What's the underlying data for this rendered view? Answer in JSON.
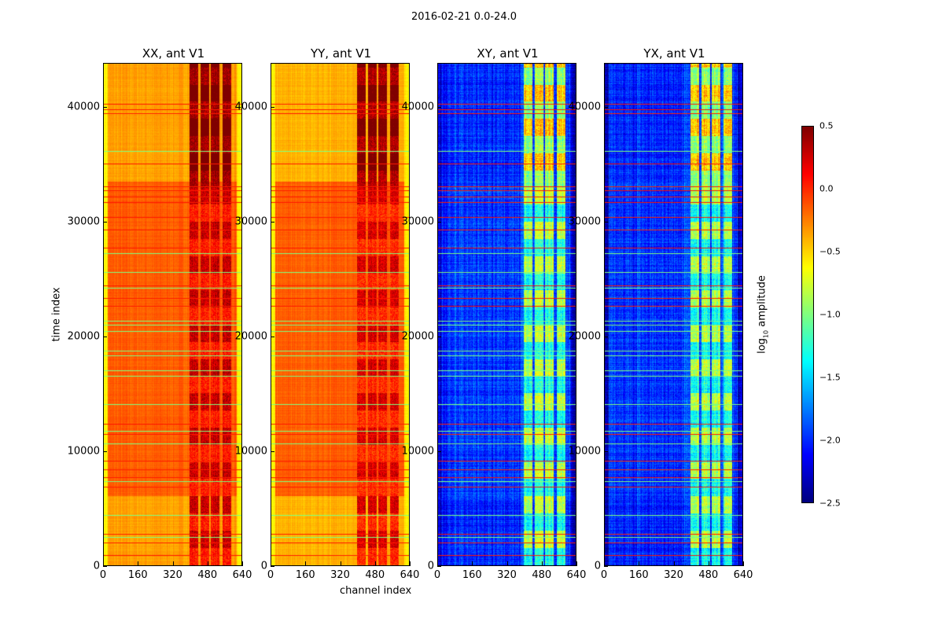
{
  "chart_data": {
    "type": "heatmap",
    "title": "2016-02-21 0.0-24.0",
    "xlabel": "channel index",
    "ylabel": "time index",
    "xlim": [
      0,
      640
    ],
    "ylim": [
      0,
      43800
    ],
    "xticks": [
      "0",
      "160",
      "320",
      "480",
      "640"
    ],
    "yticks": [
      "0",
      "10000",
      "20000",
      "30000",
      "40000"
    ],
    "colormap": "jet",
    "colorbar": {
      "label_prefix": "log",
      "label_sub": "10",
      "label_suffix": " amplitude",
      "range": [
        -2.5,
        0.5
      ],
      "ticks": [
        "0.5",
        "0.0",
        "−0.5",
        "−1.0",
        "−1.5",
        "−2.0",
        "−2.5"
      ],
      "tick_values": [
        0.5,
        0.0,
        -0.5,
        -1.0,
        -1.5,
        -2.0,
        -2.5
      ]
    },
    "panels": [
      {
        "title": "XX, ant V1",
        "base": -0.35,
        "mid_base": -0.15,
        "rfi_level": 0.15,
        "edge_level": -0.6
      },
      {
        "title": "YY, ant V1",
        "base": -0.4,
        "mid_base": -0.15,
        "rfi_level": 0.1,
        "edge_level": -0.6
      },
      {
        "title": "XY, ant V1",
        "base": -2.0,
        "mid_base": -1.95,
        "rfi_level": -1.1,
        "edge_level": -2.3
      },
      {
        "title": "YX, ant V1",
        "base": -2.0,
        "mid_base": -1.95,
        "rfi_level": -1.1,
        "edge_level": -2.3
      }
    ],
    "rfi_channels": [
      [
        400,
        440
      ],
      [
        450,
        490
      ],
      [
        500,
        540
      ],
      [
        555,
        595
      ]
    ],
    "flagged_rows_red": [
      800,
      1900,
      2700,
      6800,
      7600,
      8300,
      9100,
      11400,
      12300,
      22600,
      23300,
      24400,
      27700,
      29300,
      30400,
      31700,
      32200,
      32700,
      33100,
      35100,
      39500,
      39800,
      40300
    ],
    "flagged_rows_green": [
      2400,
      4300,
      7300,
      10600,
      11700,
      14000,
      16500,
      17000,
      18300,
      18700,
      20400,
      21000,
      21300,
      24200,
      25600,
      27200,
      36200
    ]
  }
}
